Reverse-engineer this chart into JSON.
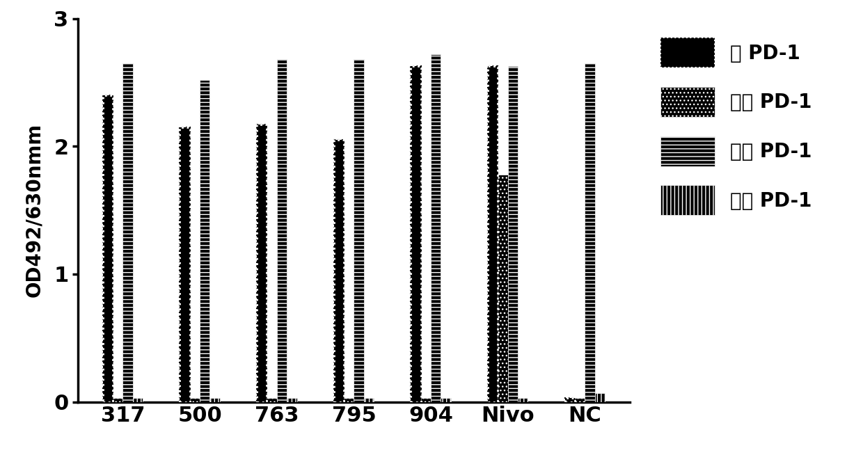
{
  "categories": [
    "317",
    "500",
    "763",
    "795",
    "904",
    "Nivo",
    "NC"
  ],
  "series": {
    "human": [
      2.4,
      2.15,
      2.17,
      2.05,
      2.63,
      2.63,
      0.03
    ],
    "mouse": [
      0.03,
      0.03,
      0.03,
      0.03,
      0.03,
      1.78,
      0.03
    ],
    "rat": [
      2.65,
      2.52,
      2.68,
      2.68,
      2.72,
      2.63,
      2.65
    ],
    "monkey": [
      0.03,
      0.03,
      0.03,
      0.03,
      0.03,
      0.03,
      0.07
    ]
  },
  "legend_labels": [
    "人 PD-1",
    "小鼠 PD-1",
    "大鼠 PD-1",
    "猴子 PD-1"
  ],
  "ylabel": "OD492/630nmm",
  "ylim": [
    0,
    3
  ],
  "yticks": [
    0,
    1,
    2,
    3
  ],
  "bar_width": 0.13,
  "background_color": "#ffffff",
  "bar_color": "#000000"
}
